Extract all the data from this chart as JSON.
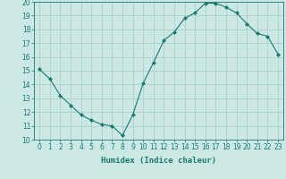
{
  "x": [
    0,
    1,
    2,
    3,
    4,
    5,
    6,
    7,
    8,
    9,
    10,
    11,
    12,
    13,
    14,
    15,
    16,
    17,
    18,
    19,
    20,
    21,
    22,
    23
  ],
  "y": [
    15.1,
    14.4,
    13.2,
    12.5,
    11.8,
    11.4,
    11.1,
    11.0,
    10.3,
    11.8,
    14.1,
    15.6,
    17.2,
    17.8,
    18.8,
    19.2,
    19.9,
    19.9,
    19.6,
    19.2,
    18.4,
    17.7,
    17.5,
    16.2
  ],
  "line_color": "#1a7a6a",
  "marker": "D",
  "marker_size": 2.0,
  "bg_color": "#cce8e4",
  "grid_color": "#aacfca",
  "xlabel": "Humidex (Indice chaleur)",
  "ylim": [
    10,
    20
  ],
  "xlim": [
    -0.5,
    23.5
  ],
  "yticks": [
    10,
    11,
    12,
    13,
    14,
    15,
    16,
    17,
    18,
    19,
    20
  ],
  "xticks": [
    0,
    1,
    2,
    3,
    4,
    5,
    6,
    7,
    8,
    9,
    10,
    11,
    12,
    13,
    14,
    15,
    16,
    17,
    18,
    19,
    20,
    21,
    22,
    23
  ],
  "tick_fontsize": 5.5,
  "xlabel_fontsize": 6.5,
  "linewidth": 0.8
}
